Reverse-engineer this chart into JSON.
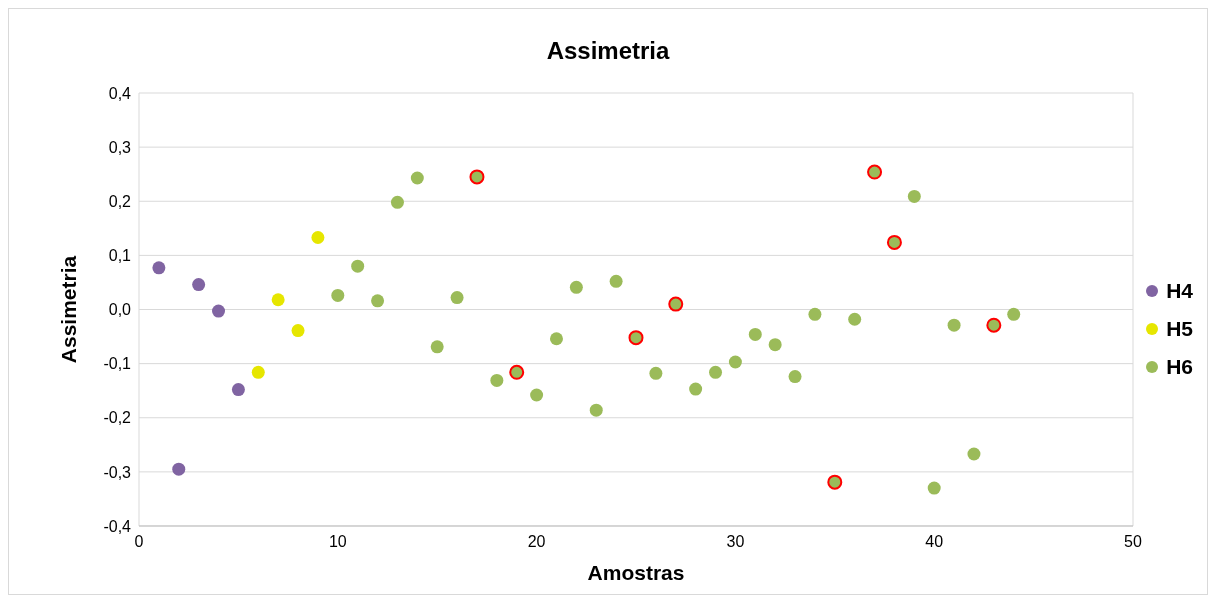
{
  "chart_data": {
    "type": "scatter",
    "title": "Assimetria",
    "xlabel": "Amostras",
    "ylabel": "Assimetria",
    "xlim": [
      0,
      50
    ],
    "xticks": [
      0,
      10,
      20,
      30,
      40,
      50
    ],
    "ylim": [
      -0.4,
      0.4
    ],
    "yticks": [
      {
        "value": -0.4,
        "label": "-0,4"
      },
      {
        "value": -0.3,
        "label": "-0,3"
      },
      {
        "value": -0.2,
        "label": "-0,2"
      },
      {
        "value": -0.1,
        "label": "-0,1"
      },
      {
        "value": 0,
        "label": "0,0"
      },
      {
        "value": 0.1,
        "label": "0,1"
      },
      {
        "value": 0.2,
        "label": "0,2"
      },
      {
        "value": 0.3,
        "label": "0,3"
      },
      {
        "value": 0.4,
        "label": "0,4"
      }
    ],
    "grid": true,
    "legend": "right",
    "marker": "circle",
    "series": [
      {
        "name": "H4",
        "color": "#8064a2",
        "x": [
          1,
          2,
          3,
          4,
          5
        ],
        "values": [
          0.077,
          -0.295,
          0.046,
          -0.003,
          -0.148
        ]
      },
      {
        "name": "H5",
        "color": "#e6e600",
        "x": [
          6,
          7,
          8,
          9
        ],
        "values": [
          -0.116,
          0.018,
          -0.039,
          0.133
        ]
      },
      {
        "name": "H6",
        "color": "#9bbb59",
        "x": [
          10,
          11,
          12,
          13,
          14,
          15,
          16,
          17,
          18,
          19,
          20,
          21,
          22,
          23,
          24,
          25,
          26,
          27,
          28,
          29,
          30,
          31,
          32,
          33,
          34,
          35,
          36,
          37,
          38,
          39,
          40,
          41,
          42,
          43,
          44
        ],
        "values": [
          0.026,
          0.08,
          0.016,
          0.198,
          0.243,
          -0.069,
          0.022,
          0.245,
          -0.131,
          -0.116,
          -0.158,
          -0.054,
          0.041,
          -0.186,
          0.052,
          -0.052,
          -0.118,
          0.01,
          -0.147,
          -0.116,
          -0.097,
          -0.046,
          -0.065,
          -0.124,
          -0.009,
          -0.319,
          -0.018,
          0.254,
          0.124,
          0.209,
          -0.33,
          -0.029,
          -0.267,
          -0.029,
          -0.009
        ]
      },
      {
        "color": "#ff0000",
        "x": [
          17,
          19,
          25,
          27,
          35,
          37,
          38,
          43
        ],
        "values": [
          0.245,
          -0.116,
          -0.052,
          0.01,
          -0.319,
          0.254,
          0.124,
          -0.029
        ]
      }
    ]
  }
}
